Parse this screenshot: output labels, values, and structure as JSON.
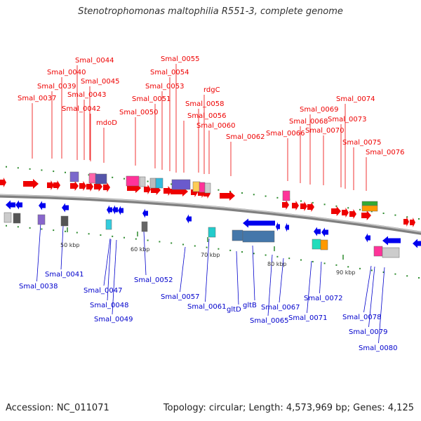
{
  "title": "Stenotrophomonas maltophilia R551-3, complete genome",
  "accession": "Accession: NC_011071",
  "topology": "Topology: circular; Length: 4,573,969 bp; Genes: 4,125",
  "colors": {
    "forward": "#ee0000",
    "reverse": "#0000ee",
    "forward_label": "#ee0000",
    "reverse_label": "#0000cc",
    "backbone": "#808080"
  },
  "scale_ticks": [
    "50 kbp",
    "60 kbp",
    "70 kbp",
    "80 kbp",
    "90 kbp"
  ],
  "top_labels": [
    "Smal_0037",
    "Smal_0039",
    "Smal_0040",
    "Smal_0044",
    "Smal_0045",
    "Smal_0043",
    "Smal_0042",
    "mdoD",
    "Smal_0050",
    "Smal_0051",
    "Smal_0053",
    "Smal_0054",
    "Smal_0055",
    "Smal_0056",
    "Smal_0058",
    "rdgC",
    "Smal_0060",
    "Smal_0062",
    "Smal_0066",
    "Smal_0068",
    "Smal_0069",
    "Smal_0070",
    "Smal_0073",
    "Smal_0074",
    "Smal_0075",
    "Smal_0076"
  ],
  "bottom_labels": [
    "Smal_0038",
    "Smal_0041",
    "Smal_0047",
    "Smal_0048",
    "Smal_0049",
    "Smal_0052",
    "Smal_0057",
    "Smal_0061",
    "gltD",
    "gltB",
    "Smal_0065",
    "Smal_0067",
    "Smal_0071",
    "Smal_0072",
    "Smal_0078",
    "Smal_0079",
    "Smal_0080"
  ]
}
